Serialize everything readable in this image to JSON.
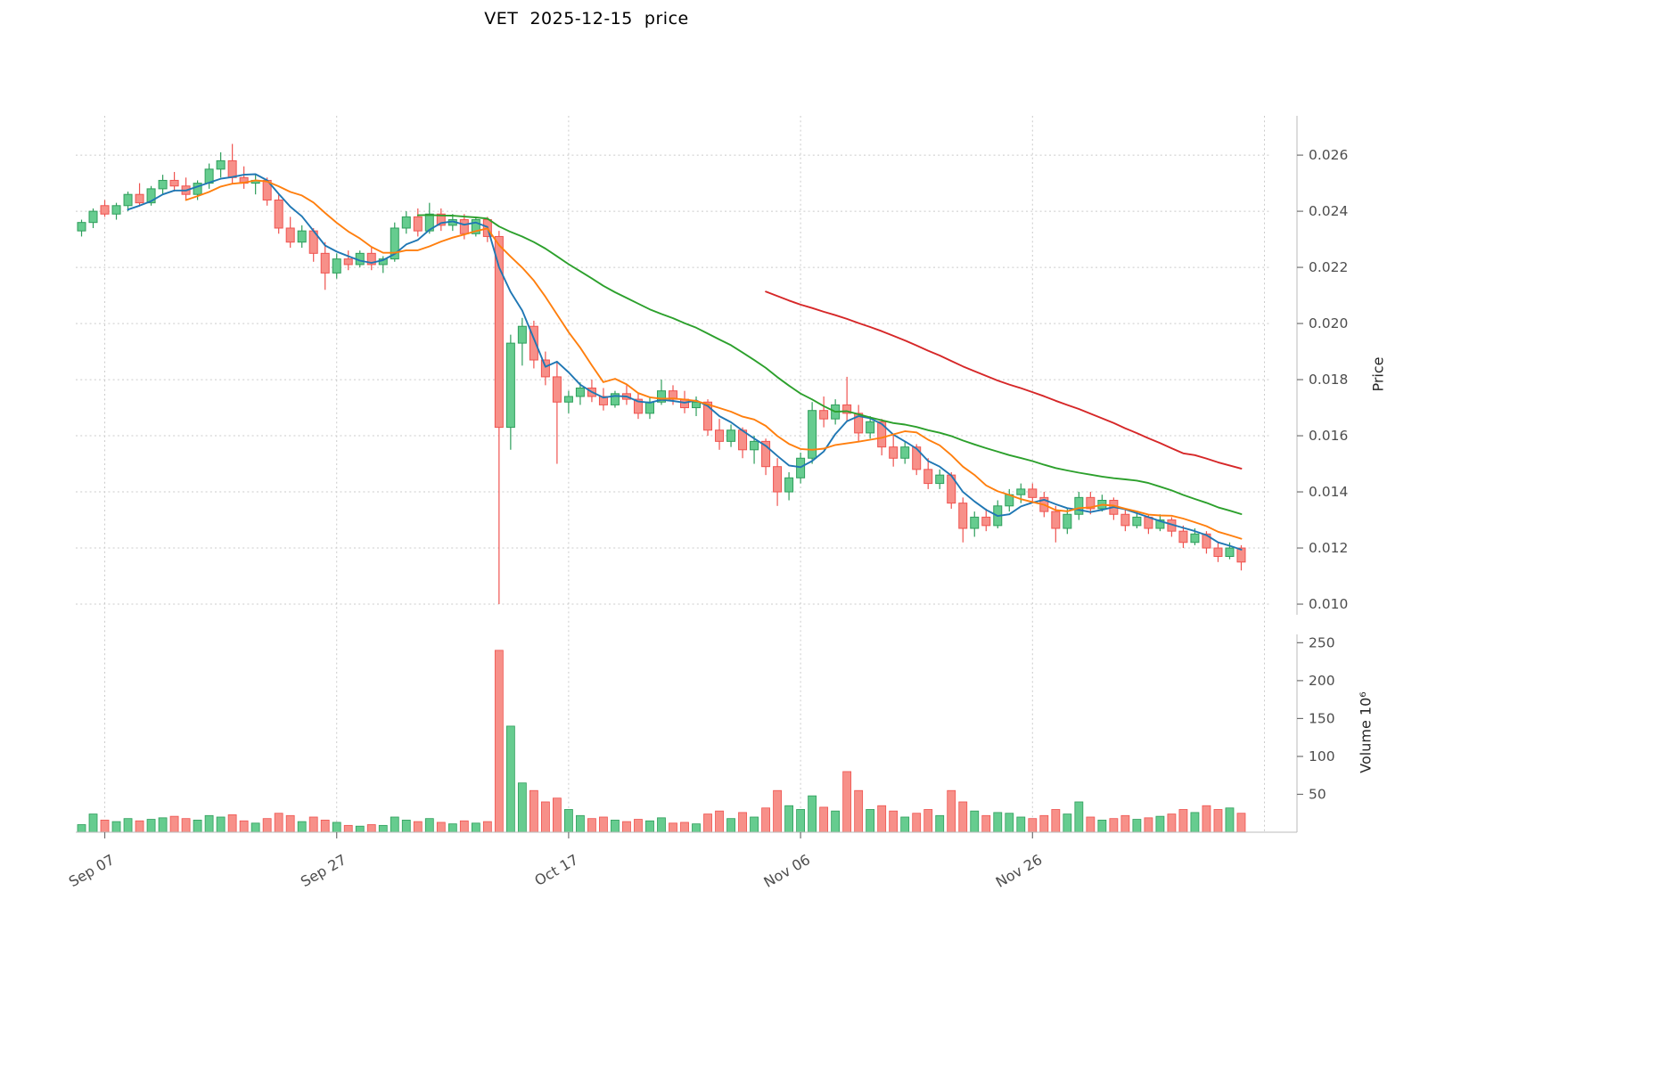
{
  "title": "VET  2025-12-15  price",
  "axes": {
    "price_label": "Price",
    "volume_label": "Volume  10⁶",
    "price_ticks": [
      0.026,
      0.024,
      0.022,
      0.02,
      0.018,
      0.016,
      0.014,
      0.012,
      0.01
    ],
    "volume_ticks": [
      250,
      200,
      150,
      100,
      50
    ],
    "x_ticks": [
      {
        "index": 2,
        "label": "Sep 07"
      },
      {
        "index": 22,
        "label": "Sep 27"
      },
      {
        "index": 42,
        "label": "Oct 17"
      },
      {
        "index": 62,
        "label": "Nov 06"
      },
      {
        "index": 82,
        "label": "Nov 26"
      }
    ],
    "extra_gridline_index": 102
  },
  "chart_data": {
    "type": "candlestick",
    "symbol": "VET",
    "as_of_date": "2025-12-15",
    "title": "VET  2025-12-15  price",
    "price_ylim": [
      0.00962,
      0.0274
    ],
    "volume_ylim": [
      0,
      261
    ],
    "volume_unit_millions": true,
    "grid": true,
    "moving_averages": [
      {
        "name": "MA5",
        "window": 5,
        "color": "#1f77b4"
      },
      {
        "name": "MA10",
        "window": 10,
        "color": "#ff7f0e"
      },
      {
        "name": "MA30",
        "window": 30,
        "color": "#2ca02c"
      },
      {
        "name": "MA60",
        "window": 60,
        "color": "#d62728"
      }
    ],
    "ohlcv_fields": [
      "open",
      "high",
      "low",
      "close",
      "volume_millions"
    ],
    "ohlcv": [
      [
        0.0233,
        0.0237,
        0.0231,
        0.0236,
        10
      ],
      [
        0.0236,
        0.0241,
        0.0234,
        0.024,
        24
      ],
      [
        0.0242,
        0.0244,
        0.0238,
        0.0239,
        16
      ],
      [
        0.0239,
        0.0243,
        0.0237,
        0.0242,
        14
      ],
      [
        0.0242,
        0.0247,
        0.024,
        0.0246,
        18
      ],
      [
        0.0246,
        0.025,
        0.0242,
        0.0243,
        15
      ],
      [
        0.0243,
        0.0249,
        0.0242,
        0.0248,
        17
      ],
      [
        0.0248,
        0.0253,
        0.0246,
        0.0251,
        19
      ],
      [
        0.0251,
        0.0254,
        0.0247,
        0.0249,
        21
      ],
      [
        0.0249,
        0.0252,
        0.0244,
        0.0246,
        18
      ],
      [
        0.0246,
        0.0251,
        0.0244,
        0.025,
        16
      ],
      [
        0.025,
        0.0257,
        0.0248,
        0.0255,
        22
      ],
      [
        0.0255,
        0.0261,
        0.0252,
        0.0258,
        20
      ],
      [
        0.0258,
        0.0264,
        0.025,
        0.0252,
        23
      ],
      [
        0.0252,
        0.0256,
        0.0248,
        0.025,
        15
      ],
      [
        0.025,
        0.0253,
        0.0246,
        0.0251,
        12
      ],
      [
        0.0251,
        0.0252,
        0.0242,
        0.0244,
        18
      ],
      [
        0.0244,
        0.0246,
        0.0232,
        0.0234,
        25
      ],
      [
        0.0234,
        0.0238,
        0.0227,
        0.0229,
        22
      ],
      [
        0.0229,
        0.0235,
        0.0227,
        0.0233,
        14
      ],
      [
        0.0233,
        0.0234,
        0.0222,
        0.0225,
        20
      ],
      [
        0.0225,
        0.0229,
        0.0212,
        0.0218,
        16
      ],
      [
        0.0218,
        0.0225,
        0.0216,
        0.0223,
        13
      ],
      [
        0.0223,
        0.0226,
        0.0219,
        0.0221,
        9
      ],
      [
        0.0221,
        0.0226,
        0.022,
        0.0225,
        8
      ],
      [
        0.0225,
        0.0227,
        0.0219,
        0.0221,
        10
      ],
      [
        0.0221,
        0.0224,
        0.0218,
        0.0223,
        9
      ],
      [
        0.0223,
        0.0236,
        0.0222,
        0.0234,
        20
      ],
      [
        0.0234,
        0.024,
        0.0232,
        0.0238,
        16
      ],
      [
        0.0238,
        0.0241,
        0.0231,
        0.0233,
        14
      ],
      [
        0.0233,
        0.0243,
        0.0232,
        0.0239,
        18
      ],
      [
        0.0239,
        0.0241,
        0.0233,
        0.0235,
        13
      ],
      [
        0.0235,
        0.0239,
        0.0233,
        0.0237,
        11
      ],
      [
        0.0237,
        0.0239,
        0.023,
        0.0232,
        15
      ],
      [
        0.0232,
        0.0238,
        0.0231,
        0.0237,
        12
      ],
      [
        0.0237,
        0.0238,
        0.0229,
        0.0231,
        14
      ],
      [
        0.0231,
        0.0233,
        0.01,
        0.0163,
        240
      ],
      [
        0.0163,
        0.0196,
        0.0155,
        0.0193,
        140
      ],
      [
        0.0193,
        0.0202,
        0.0185,
        0.0199,
        65
      ],
      [
        0.0199,
        0.0201,
        0.0184,
        0.0187,
        55
      ],
      [
        0.0187,
        0.019,
        0.0178,
        0.0181,
        40
      ],
      [
        0.0181,
        0.0186,
        0.015,
        0.0172,
        45
      ],
      [
        0.0172,
        0.0176,
        0.0168,
        0.0174,
        30
      ],
      [
        0.0174,
        0.0179,
        0.0171,
        0.0177,
        22
      ],
      [
        0.0177,
        0.018,
        0.0172,
        0.0174,
        18
      ],
      [
        0.0174,
        0.0177,
        0.0169,
        0.0171,
        20
      ],
      [
        0.0171,
        0.0176,
        0.017,
        0.0175,
        16
      ],
      [
        0.0175,
        0.0178,
        0.0171,
        0.0173,
        14
      ],
      [
        0.0173,
        0.0175,
        0.0166,
        0.0168,
        17
      ],
      [
        0.0168,
        0.0174,
        0.0166,
        0.0172,
        15
      ],
      [
        0.0172,
        0.018,
        0.0171,
        0.0176,
        19
      ],
      [
        0.0176,
        0.0178,
        0.0171,
        0.0173,
        12
      ],
      [
        0.0173,
        0.0176,
        0.0168,
        0.017,
        13
      ],
      [
        0.017,
        0.0174,
        0.0167,
        0.0172,
        11
      ],
      [
        0.0172,
        0.0173,
        0.016,
        0.0162,
        24
      ],
      [
        0.0162,
        0.0166,
        0.0155,
        0.0158,
        28
      ],
      [
        0.0158,
        0.0164,
        0.0156,
        0.0162,
        18
      ],
      [
        0.0162,
        0.0163,
        0.0152,
        0.0155,
        26
      ],
      [
        0.0155,
        0.016,
        0.015,
        0.0158,
        20
      ],
      [
        0.0158,
        0.0159,
        0.0146,
        0.0149,
        32
      ],
      [
        0.0149,
        0.0152,
        0.0135,
        0.014,
        55
      ],
      [
        0.014,
        0.0147,
        0.0137,
        0.0145,
        35
      ],
      [
        0.0145,
        0.0154,
        0.0143,
        0.0152,
        30
      ],
      [
        0.0152,
        0.0172,
        0.015,
        0.0169,
        48
      ],
      [
        0.0169,
        0.0174,
        0.0163,
        0.0166,
        33
      ],
      [
        0.0166,
        0.0173,
        0.0164,
        0.0171,
        28
      ],
      [
        0.0171,
        0.0181,
        0.0165,
        0.0168,
        80
      ],
      [
        0.0168,
        0.0171,
        0.0158,
        0.0161,
        55
      ],
      [
        0.0161,
        0.0167,
        0.0159,
        0.0165,
        30
      ],
      [
        0.0165,
        0.0166,
        0.0153,
        0.0156,
        35
      ],
      [
        0.0156,
        0.016,
        0.0149,
        0.0152,
        28
      ],
      [
        0.0152,
        0.0158,
        0.015,
        0.0156,
        20
      ],
      [
        0.0156,
        0.0157,
        0.0146,
        0.0148,
        25
      ],
      [
        0.0148,
        0.0152,
        0.0141,
        0.0143,
        30
      ],
      [
        0.0143,
        0.0148,
        0.0141,
        0.0146,
        22
      ],
      [
        0.0146,
        0.0147,
        0.0134,
        0.0136,
        55
      ],
      [
        0.0136,
        0.0138,
        0.0122,
        0.0127,
        40
      ],
      [
        0.0127,
        0.0133,
        0.0124,
        0.0131,
        28
      ],
      [
        0.0131,
        0.0134,
        0.0126,
        0.0128,
        22
      ],
      [
        0.0128,
        0.0137,
        0.0127,
        0.0135,
        26
      ],
      [
        0.0135,
        0.0141,
        0.0133,
        0.0139,
        25
      ],
      [
        0.0139,
        0.0143,
        0.0136,
        0.0141,
        20
      ],
      [
        0.0141,
        0.0143,
        0.0136,
        0.0138,
        18
      ],
      [
        0.0138,
        0.014,
        0.0131,
        0.0133,
        22
      ],
      [
        0.0133,
        0.0135,
        0.0122,
        0.0127,
        30
      ],
      [
        0.0127,
        0.0134,
        0.0125,
        0.0132,
        24
      ],
      [
        0.0132,
        0.014,
        0.013,
        0.0138,
        40
      ],
      [
        0.0138,
        0.014,
        0.0132,
        0.0134,
        20
      ],
      [
        0.0134,
        0.0139,
        0.0133,
        0.0137,
        16
      ],
      [
        0.0137,
        0.0138,
        0.013,
        0.0132,
        18
      ],
      [
        0.0132,
        0.0134,
        0.0126,
        0.0128,
        22
      ],
      [
        0.0128,
        0.0133,
        0.0127,
        0.0131,
        17
      ],
      [
        0.0131,
        0.0132,
        0.0125,
        0.0127,
        19
      ],
      [
        0.0127,
        0.0132,
        0.0126,
        0.013,
        21
      ],
      [
        0.013,
        0.0131,
        0.0124,
        0.0126,
        24
      ],
      [
        0.0126,
        0.0128,
        0.012,
        0.0122,
        30
      ],
      [
        0.0122,
        0.0127,
        0.0121,
        0.0125,
        26
      ],
      [
        0.0125,
        0.0126,
        0.0118,
        0.012,
        35
      ],
      [
        0.012,
        0.0122,
        0.0115,
        0.0117,
        30
      ],
      [
        0.0117,
        0.0122,
        0.0116,
        0.012,
        32
      ],
      [
        0.012,
        0.0121,
        0.0112,
        0.0115,
        25
      ]
    ]
  },
  "colors": {
    "up_fill": "#66cc8f",
    "up_edge": "#2e9e5b",
    "down_fill": "#f79089",
    "down_edge": "#ef534f",
    "grid": "#cbcbcb",
    "tick_text": "#4d4d4d",
    "spine": "#bbbbbb",
    "tick_mark": "#707070"
  }
}
